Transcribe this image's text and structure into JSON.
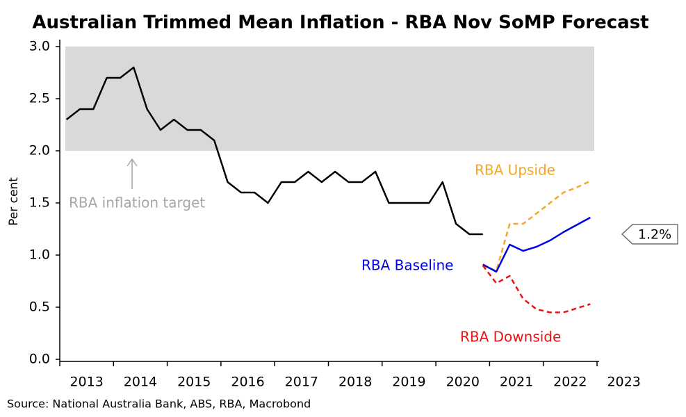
{
  "chart_data": {
    "type": "line",
    "title": "Australian Trimmed Mean Inflation - RBA Nov SoMP Forecast",
    "y_label": "Per cent",
    "source": "Source: National Australia Bank, ABS, RBA, Macrobond",
    "xlim": [
      2013,
      2023
    ],
    "xticks": [
      2013,
      2014,
      2015,
      2016,
      2017,
      2018,
      2019,
      2020,
      2021,
      2022,
      2023
    ],
    "ylim": [
      0,
      3
    ],
    "yticks": [
      {
        "value": 0,
        "label": "0.0"
      },
      {
        "value": 0.5,
        "label": "0.5"
      },
      {
        "value": 1,
        "label": "1.0"
      },
      {
        "value": 1.5,
        "label": "1.5"
      },
      {
        "value": 2,
        "label": "2.0"
      },
      {
        "value": 2.5,
        "label": "2.5"
      },
      {
        "value": 3,
        "label": "3.0"
      }
    ],
    "target_band": {
      "label": "RBA inflation target",
      "range": [
        2,
        3
      ],
      "color": "#d9d9d9"
    },
    "last_value_label": {
      "value": 1.2,
      "label": "1.2%"
    },
    "series": [
      {
        "color": "#000000",
        "dash": false,
        "x": [
          2013.125,
          2013.375,
          2013.625,
          2013.875,
          2014.125,
          2014.375,
          2014.625,
          2014.875,
          2015.125,
          2015.375,
          2015.625,
          2015.875,
          2016.125,
          2016.375,
          2016.625,
          2016.875,
          2017.125,
          2017.375,
          2017.625,
          2017.875,
          2018.125,
          2018.375,
          2018.625,
          2018.875,
          2019.125,
          2019.375,
          2019.625,
          2019.875,
          2020.125,
          2020.375,
          2020.625,
          2020.875
        ],
        "values": [
          2.3,
          2.4,
          2.4,
          2.7,
          2.7,
          2.8,
          2.4,
          2.2,
          2.3,
          2.2,
          2.2,
          2.1,
          1.7,
          1.6,
          1.6,
          1.5,
          1.7,
          1.7,
          1.8,
          1.7,
          1.8,
          1.7,
          1.7,
          1.8,
          1.5,
          1.5,
          1.5,
          1.5,
          1.7,
          1.3,
          1.2,
          1.2
        ]
      },
      {
        "name": "RBA Upside",
        "color": "#f5a623",
        "dash": true,
        "x": [
          2020.875,
          2021.125,
          2021.375,
          2021.625,
          2021.875,
          2022.125,
          2022.375,
          2022.625,
          2022.875
        ],
        "values": [
          0.9,
          0.85,
          1.3,
          1.3,
          1.4,
          1.5,
          1.6,
          1.65,
          1.71
        ]
      },
      {
        "name": "RBA Baseline",
        "color": "#0000e6",
        "dash": false,
        "x": [
          2020.875,
          2021.125,
          2021.375,
          2021.625,
          2021.875,
          2022.125,
          2022.375,
          2022.625,
          2022.875
        ],
        "values": [
          0.91,
          0.84,
          1.1,
          1.04,
          1.08,
          1.14,
          1.22,
          1.29,
          1.36
        ]
      },
      {
        "name": "RBA Downside",
        "color": "#ee1111",
        "dash": true,
        "x": [
          2020.875,
          2021.125,
          2021.375,
          2021.625,
          2021.875,
          2022.125,
          2022.375,
          2022.625,
          2022.875
        ],
        "values": [
          0.9,
          0.73,
          0.8,
          0.58,
          0.48,
          0.45,
          0.45,
          0.49,
          0.53
        ]
      }
    ]
  }
}
